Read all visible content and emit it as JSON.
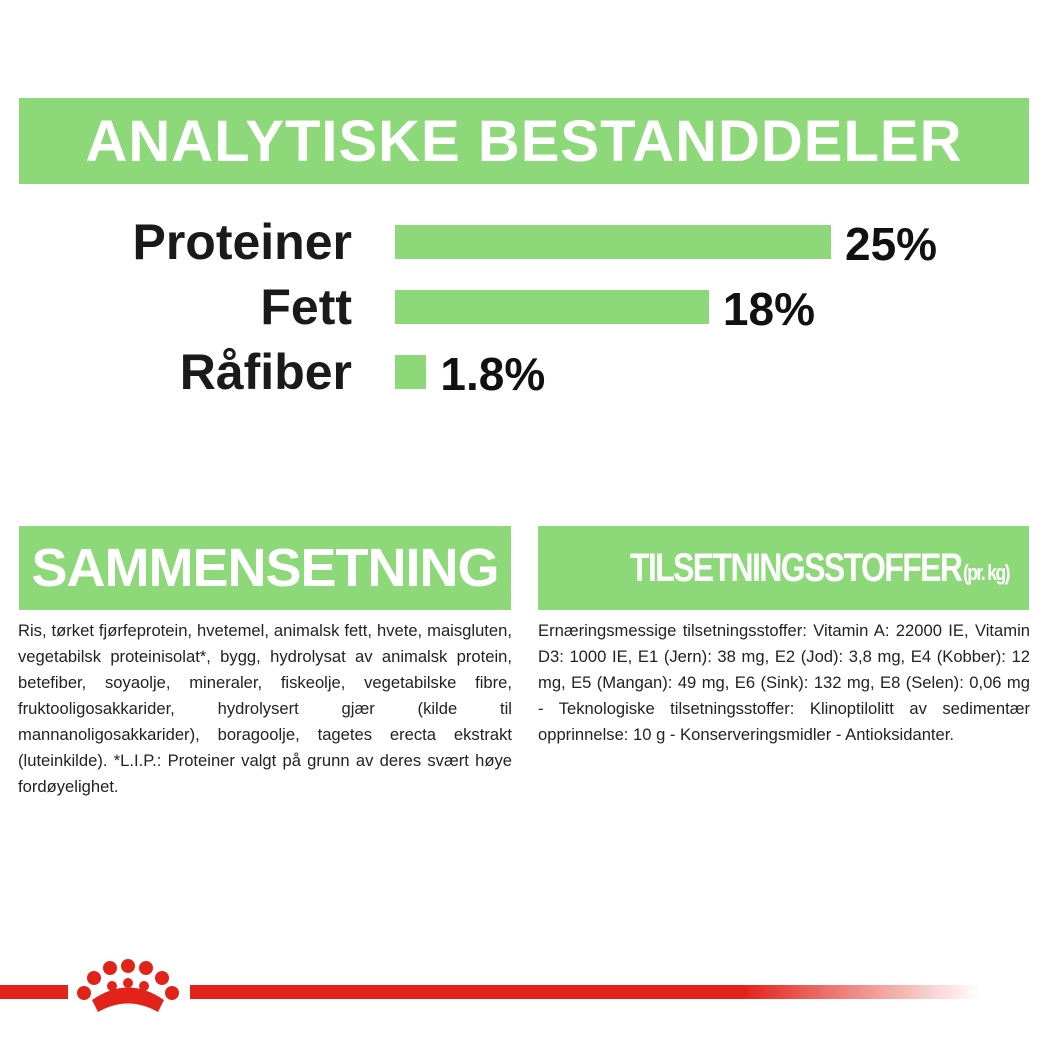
{
  "chart_data": {
    "type": "bar",
    "orientation": "horizontal",
    "title": "ANALYTISKE BESTANDDELER",
    "categories": [
      "Proteiner",
      "Fett",
      "Råfiber"
    ],
    "values": [
      25,
      18,
      1.8
    ],
    "value_labels": [
      "25%",
      "18%",
      "1.8%"
    ],
    "color": "#8dd879"
  },
  "sections": [
    {
      "heading": "SAMMENSETNING",
      "text": "Ris, tørket fjørfeprotein, hvetemel, animalsk fett, hvete, maisgluten, vegetabilsk proteinisolat*, bygg, hydrolysat av animalsk protein, betefiber, soyaolje, mineraler, fiskeolje, vegetabilske fibre, fruktooligosakkarider, hydrolysert gjær (kilde til mannanoligosakkarider), boragoolje, tagetes erecta ekstrakt (luteinkilde). *L.I.P.: Proteiner valgt på grunn av deres svært høye fordøyelighet."
    },
    {
      "heading": "TILSETNINGSSTOFFER",
      "heading_note": "(pr. kg)",
      "text": "Ernæringsmessige tilsetningsstoffer: Vitamin A: 22000 IE, Vitamin D3: 1000 IE, E1 (Jern): 38 mg, E2 (Jod): 3,8 mg, E4 (Kobber): 12 mg, E5 (Mangan): 49 mg, E6 (Sink): 132 mg, E8 (Selen): 0,06 mg - Teknologiske tilsetningsstoffer: Klinoptilolitt av sedimentær opprinnelse: 10 g - Konserveringsmidler - Antioksidanter."
    }
  ]
}
